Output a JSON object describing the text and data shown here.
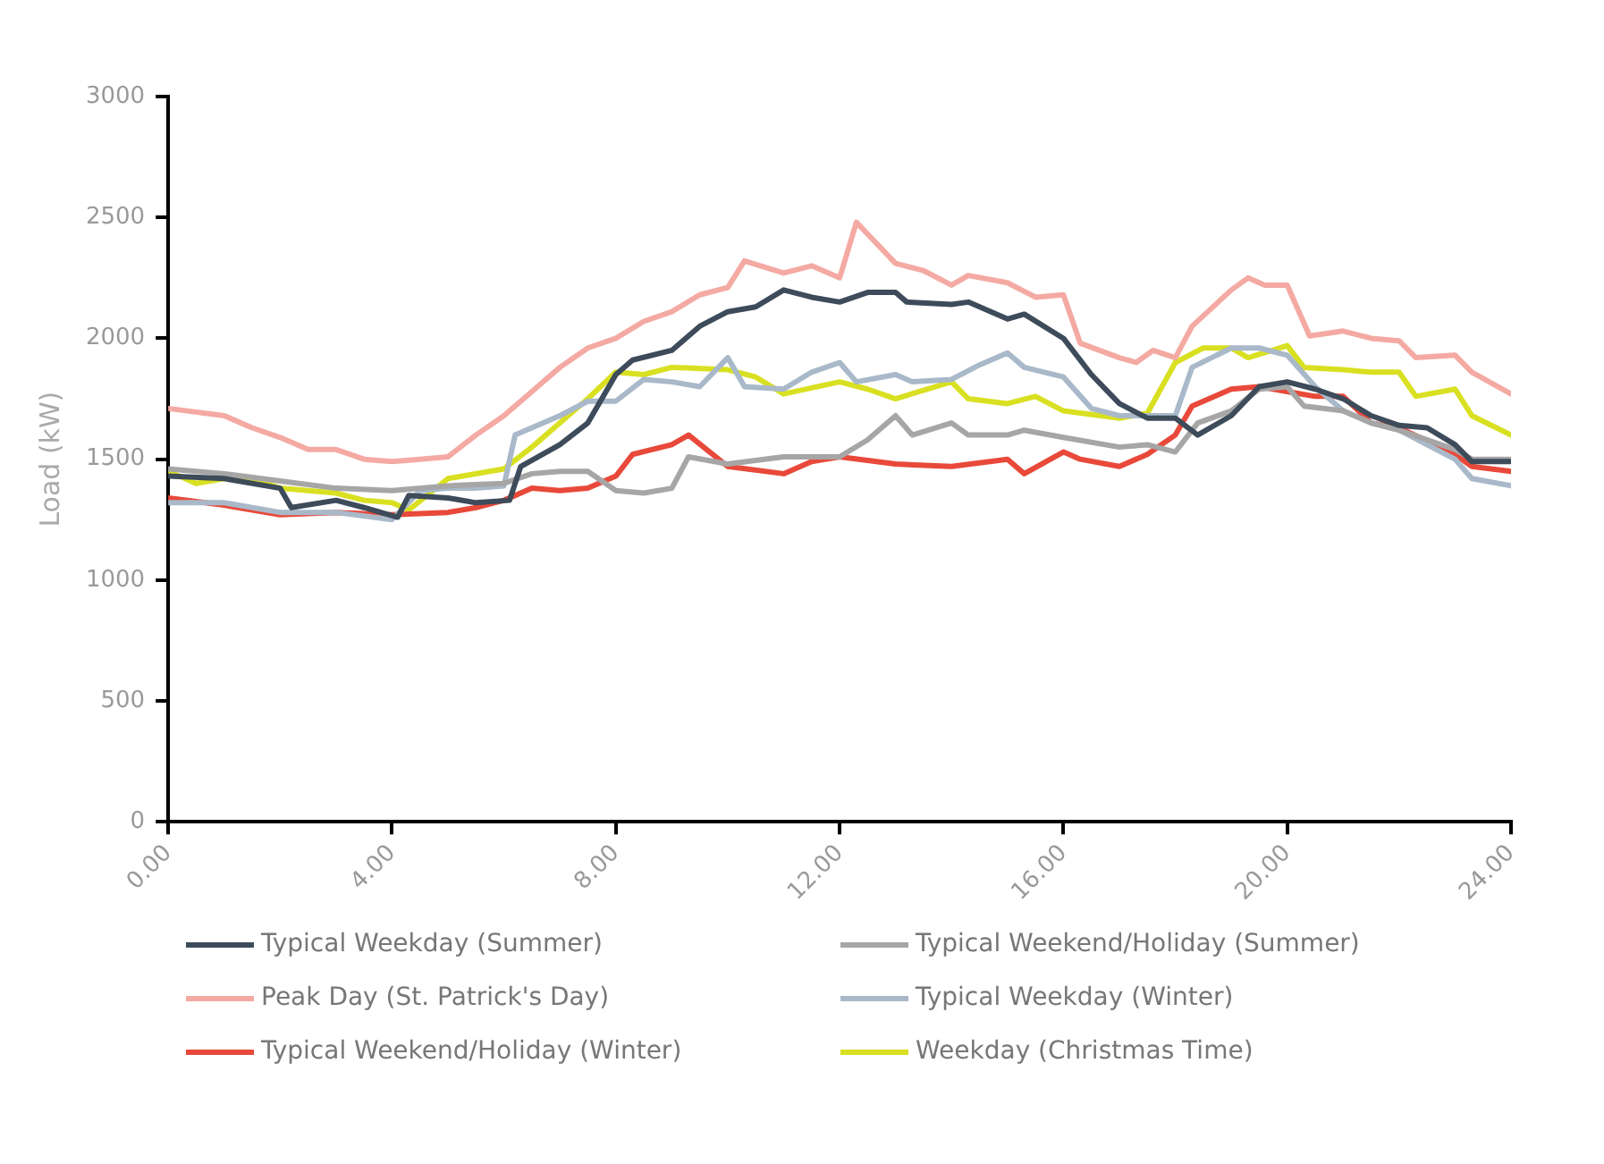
{
  "chart_data": {
    "type": "line",
    "ylabel": "Load (kW)",
    "xlim": [
      0,
      24
    ],
    "xticks": [
      {
        "value": 0,
        "label": "0.00"
      },
      {
        "value": 4,
        "label": "4.00"
      },
      {
        "value": 8,
        "label": "8.00"
      },
      {
        "value": 12,
        "label": "12.00"
      },
      {
        "value": 16,
        "label": "16.00"
      },
      {
        "value": 20,
        "label": "20.00"
      },
      {
        "value": 24,
        "label": "24.00"
      }
    ],
    "ylim": [
      0,
      3000
    ],
    "yticks": [
      0,
      500,
      1000,
      1500,
      2000,
      2500,
      3000
    ],
    "grid": false,
    "legend": "bottom",
    "marker": "none",
    "line_style": "solid",
    "series": [
      {
        "name": "Typical Weekday (Summer)",
        "color": "#3d4b5a",
        "x": [
          0,
          1,
          2,
          2.2,
          3,
          3.5,
          4.1,
          4.3,
          5,
          5.5,
          6.1,
          6.3,
          7,
          7.5,
          8,
          8.3,
          9,
          9.5,
          10,
          10.5,
          11,
          11.5,
          12,
          12.5,
          13,
          13.2,
          14,
          14.3,
          15,
          15.3,
          16,
          16.5,
          17,
          17.5,
          18,
          18.4,
          19,
          19.5,
          20,
          20.5,
          21,
          21.5,
          22,
          22.5,
          23,
          23.3,
          24
        ],
        "values": [
          1430,
          1420,
          1380,
          1300,
          1330,
          1300,
          1260,
          1350,
          1340,
          1320,
          1330,
          1470,
          1560,
          1650,
          1850,
          1910,
          1950,
          2050,
          2110,
          2130,
          2200,
          2170,
          2150,
          2190,
          2190,
          2150,
          2140,
          2150,
          2080,
          2100,
          2000,
          1850,
          1730,
          1670,
          1670,
          1600,
          1680,
          1800,
          1820,
          1790,
          1750,
          1680,
          1640,
          1630,
          1560,
          1490,
          1490
        ]
      },
      {
        "name": "Typical Weekend/Holiday (Summer)",
        "color": "#a6a6a6",
        "x": [
          0,
          1,
          2,
          3,
          4,
          5,
          6,
          6.5,
          7,
          7.5,
          8,
          8.5,
          9,
          9.3,
          10,
          11,
          12,
          12.5,
          13,
          13.3,
          14,
          14.3,
          15,
          15.3,
          16,
          17,
          17.5,
          18,
          18.4,
          19,
          19.5,
          20,
          20.3,
          21,
          21.5,
          22,
          23,
          23.3,
          24
        ],
        "values": [
          1460,
          1440,
          1410,
          1380,
          1370,
          1390,
          1400,
          1440,
          1450,
          1450,
          1370,
          1360,
          1380,
          1510,
          1480,
          1510,
          1510,
          1580,
          1680,
          1600,
          1650,
          1600,
          1600,
          1620,
          1590,
          1550,
          1560,
          1530,
          1650,
          1700,
          1790,
          1800,
          1720,
          1700,
          1650,
          1620,
          1540,
          1500,
          1500
        ]
      },
      {
        "name": "Peak Day (St. Patrick's Day)",
        "color": "#f4aaa3",
        "x": [
          0,
          1,
          1.5,
          2,
          2.5,
          3,
          3.5,
          4,
          4.5,
          5,
          5.5,
          6,
          6.5,
          7,
          7.5,
          8,
          8.5,
          9,
          9.5,
          10,
          10.3,
          11,
          11.5,
          12,
          12.3,
          13,
          13.5,
          14,
          14.3,
          15,
          15.5,
          16,
          16.3,
          17,
          17.3,
          17.6,
          18,
          18.3,
          19,
          19.3,
          19.6,
          20,
          20.4,
          21,
          21.5,
          22,
          22.3,
          23,
          23.3,
          24
        ],
        "values": [
          1710,
          1680,
          1630,
          1590,
          1540,
          1540,
          1500,
          1490,
          1500,
          1510,
          1600,
          1680,
          1780,
          1880,
          1960,
          2000,
          2070,
          2110,
          2180,
          2210,
          2320,
          2270,
          2300,
          2250,
          2480,
          2310,
          2280,
          2220,
          2260,
          2230,
          2170,
          2180,
          1980,
          1920,
          1900,
          1950,
          1920,
          2050,
          2200,
          2250,
          2220,
          2220,
          2010,
          2030,
          2000,
          1990,
          1920,
          1930,
          1860,
          1770
        ]
      },
      {
        "name": "Typical Weekday (Winter)",
        "color": "#a9b9c9",
        "x": [
          0,
          1,
          2,
          3,
          4,
          4.5,
          5,
          5.5,
          6,
          6.2,
          7,
          7.5,
          8,
          8.5,
          9,
          9.5,
          10,
          10.3,
          11,
          11.5,
          12,
          12.3,
          13,
          13.3,
          14,
          14.5,
          15,
          15.3,
          16,
          16.5,
          17,
          18,
          18.3,
          19,
          19.5,
          20,
          20.5,
          21,
          21.5,
          22,
          23,
          23.3,
          24
        ],
        "values": [
          1320,
          1320,
          1280,
          1280,
          1250,
          1370,
          1380,
          1380,
          1390,
          1600,
          1680,
          1740,
          1740,
          1830,
          1820,
          1800,
          1920,
          1800,
          1790,
          1860,
          1900,
          1820,
          1850,
          1820,
          1830,
          1890,
          1940,
          1880,
          1840,
          1710,
          1680,
          1680,
          1880,
          1960,
          1960,
          1930,
          1800,
          1700,
          1650,
          1620,
          1500,
          1420,
          1390
        ]
      },
      {
        "name": "Typical Weekend/Holiday (Winter)",
        "color": "#e8493a",
        "x": [
          0,
          1,
          2,
          3,
          4,
          5,
          5.5,
          6,
          6.5,
          7,
          7.5,
          8,
          8.3,
          9,
          9.3,
          10,
          11,
          11.5,
          12,
          13,
          14,
          15,
          15.3,
          16,
          16.3,
          17,
          17.5,
          18,
          18.3,
          19,
          19.5,
          20,
          20.5,
          21,
          21.5,
          22,
          23,
          23.3,
          24
        ],
        "values": [
          1340,
          1310,
          1270,
          1280,
          1270,
          1280,
          1300,
          1330,
          1380,
          1370,
          1380,
          1430,
          1520,
          1560,
          1600,
          1470,
          1440,
          1490,
          1510,
          1480,
          1470,
          1500,
          1440,
          1530,
          1500,
          1470,
          1520,
          1600,
          1720,
          1790,
          1800,
          1780,
          1760,
          1760,
          1650,
          1630,
          1520,
          1470,
          1450
        ]
      },
      {
        "name": "Weekday (Christmas Time)",
        "color": "#d9e021",
        "x": [
          0,
          0.5,
          1,
          1.5,
          2,
          3,
          3.5,
          4,
          4.3,
          5,
          6,
          6.5,
          7,
          7.5,
          8,
          8.5,
          9,
          10,
          10.5,
          11,
          12,
          12.5,
          13,
          14,
          14.3,
          15,
          15.5,
          16,
          17,
          17.5,
          18,
          18.5,
          19,
          19.3,
          20,
          20.3,
          21,
          21.5,
          22,
          22.3,
          23,
          23.3,
          24
        ],
        "values": [
          1450,
          1400,
          1420,
          1420,
          1380,
          1360,
          1330,
          1320,
          1290,
          1420,
          1460,
          1550,
          1650,
          1750,
          1860,
          1850,
          1880,
          1870,
          1840,
          1770,
          1820,
          1790,
          1750,
          1820,
          1750,
          1730,
          1760,
          1700,
          1670,
          1690,
          1900,
          1960,
          1960,
          1920,
          1970,
          1880,
          1870,
          1860,
          1860,
          1760,
          1790,
          1680,
          1600
        ]
      }
    ]
  }
}
